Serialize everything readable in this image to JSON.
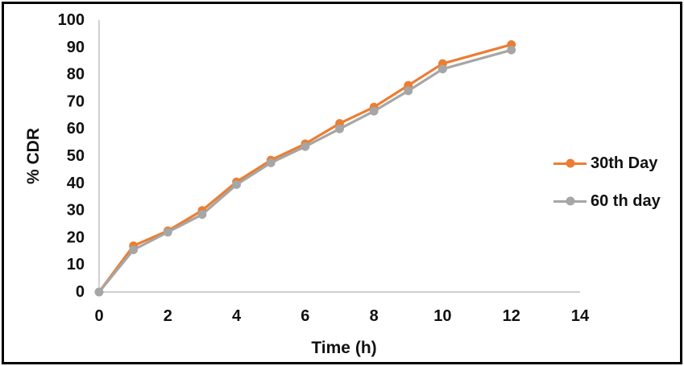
{
  "figure": {
    "background": "#FFFFFF",
    "border_color": "#000000"
  },
  "chart_data": {
    "type": "line",
    "title": "",
    "xlabel": "Time (h)",
    "ylabel": "% CDR",
    "x": [
      0,
      1,
      2,
      3,
      4,
      5,
      6,
      7,
      8,
      9,
      10,
      12
    ],
    "series": [
      {
        "name": "30th Day",
        "color": "#ED7D31",
        "values": [
          0,
          17,
          22.5,
          30,
          40.5,
          48.5,
          54.5,
          62,
          68,
          76,
          84,
          91
        ]
      },
      {
        "name": "60 th day",
        "color": "#A6A6A6",
        "values": [
          0,
          15.5,
          22,
          28.5,
          39.5,
          47.5,
          53.5,
          60,
          66.5,
          74,
          82,
          89
        ]
      }
    ],
    "xlim": [
      0,
      14
    ],
    "ylim": [
      0,
      100
    ],
    "x_ticks": [
      0,
      2,
      4,
      6,
      8,
      10,
      12,
      14
    ],
    "y_ticks": [
      0,
      10,
      20,
      30,
      40,
      50,
      60,
      70,
      80,
      90,
      100
    ],
    "grid": false,
    "legend_position": "right",
    "marker": "circle",
    "axis_line_color": "#BDBDBD",
    "tick_label_color": "#111111"
  }
}
